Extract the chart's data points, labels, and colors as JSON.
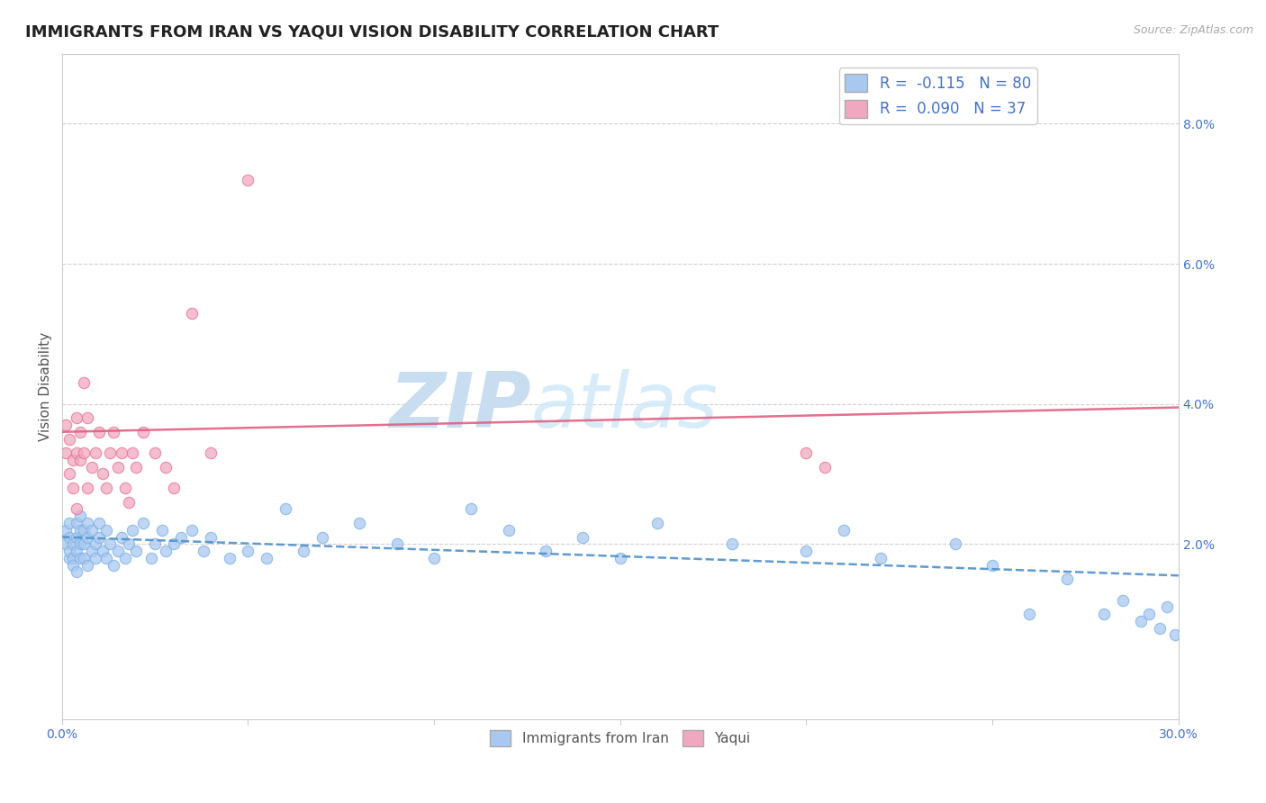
{
  "title": "IMMIGRANTS FROM IRAN VS YAQUI VISION DISABILITY CORRELATION CHART",
  "source_text": "Source: ZipAtlas.com",
  "xlabel": "",
  "ylabel": "Vision Disability",
  "xlim": [
    0.0,
    0.3
  ],
  "ylim": [
    -0.005,
    0.09
  ],
  "xticks": [
    0.0,
    0.05,
    0.1,
    0.15,
    0.2,
    0.25,
    0.3
  ],
  "xticklabels": [
    "0.0%",
    "",
    "",
    "",
    "",
    "",
    "30.0%"
  ],
  "yticks": [
    0.02,
    0.04,
    0.06,
    0.08
  ],
  "yticklabels": [
    "2.0%",
    "4.0%",
    "6.0%",
    "8.0%"
  ],
  "legend_blue_label": "R = -0.115   N = 80",
  "legend_pink_label": "R = 0.090   N = 37",
  "iran_color": "#a8c8f0",
  "yaqui_color": "#f0a8c0",
  "iran_edge_color": "#7ab0e0",
  "yaqui_edge_color": "#e87090",
  "iran_line_color": "#5090c8",
  "yaqui_line_color": "#e06080",
  "watermark_text": "ZIP",
  "watermark_text2": "atlas",
  "watermark_color": "#c8ddf0",
  "background_color": "#ffffff",
  "grid_color": "#cccccc",
  "title_fontsize": 13,
  "axis_label_fontsize": 11,
  "tick_fontsize": 10,
  "tick_color": "#4472c4",
  "iran_scatter_x": [
    0.001,
    0.001,
    0.002,
    0.002,
    0.002,
    0.002,
    0.003,
    0.003,
    0.003,
    0.004,
    0.004,
    0.004,
    0.004,
    0.005,
    0.005,
    0.005,
    0.005,
    0.006,
    0.006,
    0.006,
    0.007,
    0.007,
    0.007,
    0.008,
    0.008,
    0.009,
    0.009,
    0.01,
    0.01,
    0.011,
    0.012,
    0.012,
    0.013,
    0.014,
    0.015,
    0.016,
    0.017,
    0.018,
    0.019,
    0.02,
    0.022,
    0.024,
    0.025,
    0.027,
    0.028,
    0.03,
    0.032,
    0.035,
    0.038,
    0.04,
    0.045,
    0.05,
    0.055,
    0.06,
    0.065,
    0.07,
    0.08,
    0.09,
    0.1,
    0.11,
    0.12,
    0.13,
    0.14,
    0.15,
    0.16,
    0.18,
    0.2,
    0.21,
    0.22,
    0.24,
    0.25,
    0.26,
    0.27,
    0.28,
    0.285,
    0.29,
    0.292,
    0.295,
    0.297,
    0.299
  ],
  "iran_scatter_y": [
    0.02,
    0.022,
    0.018,
    0.021,
    0.019,
    0.023,
    0.018,
    0.02,
    0.017,
    0.019,
    0.021,
    0.023,
    0.016,
    0.018,
    0.02,
    0.022,
    0.024,
    0.018,
    0.02,
    0.022,
    0.017,
    0.021,
    0.023,
    0.019,
    0.022,
    0.02,
    0.018,
    0.021,
    0.023,
    0.019,
    0.018,
    0.022,
    0.02,
    0.017,
    0.019,
    0.021,
    0.018,
    0.02,
    0.022,
    0.019,
    0.023,
    0.018,
    0.02,
    0.022,
    0.019,
    0.02,
    0.021,
    0.022,
    0.019,
    0.021,
    0.018,
    0.019,
    0.018,
    0.025,
    0.019,
    0.021,
    0.023,
    0.02,
    0.018,
    0.025,
    0.022,
    0.019,
    0.021,
    0.018,
    0.023,
    0.02,
    0.019,
    0.022,
    0.018,
    0.02,
    0.017,
    0.01,
    0.015,
    0.01,
    0.012,
    0.009,
    0.01,
    0.008,
    0.011,
    0.007
  ],
  "yaqui_scatter_x": [
    0.001,
    0.001,
    0.002,
    0.002,
    0.003,
    0.003,
    0.004,
    0.004,
    0.004,
    0.005,
    0.005,
    0.006,
    0.006,
    0.007,
    0.007,
    0.008,
    0.009,
    0.01,
    0.011,
    0.012,
    0.013,
    0.014,
    0.015,
    0.016,
    0.017,
    0.018,
    0.019,
    0.02,
    0.022,
    0.025,
    0.028,
    0.03,
    0.035,
    0.04,
    0.05,
    0.2,
    0.205
  ],
  "yaqui_scatter_y": [
    0.033,
    0.037,
    0.03,
    0.035,
    0.028,
    0.032,
    0.038,
    0.033,
    0.025,
    0.032,
    0.036,
    0.043,
    0.033,
    0.038,
    0.028,
    0.031,
    0.033,
    0.036,
    0.03,
    0.028,
    0.033,
    0.036,
    0.031,
    0.033,
    0.028,
    0.026,
    0.033,
    0.031,
    0.036,
    0.033,
    0.031,
    0.028,
    0.053,
    0.033,
    0.072,
    0.033,
    0.031
  ],
  "iran_trend_x": [
    0.0,
    0.3
  ],
  "iran_trend_y": [
    0.021,
    0.0155
  ],
  "yaqui_trend_x": [
    0.0,
    0.3
  ],
  "yaqui_trend_y": [
    0.036,
    0.0395
  ]
}
